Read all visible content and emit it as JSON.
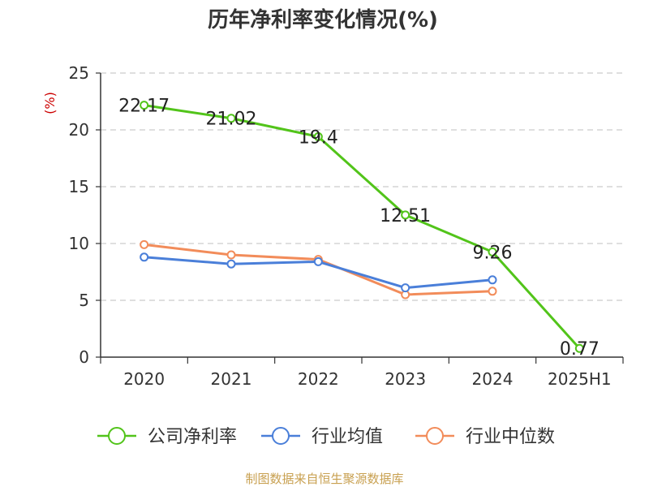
{
  "chart_data": {
    "type": "line",
    "title": "历年净利率变化情况(%)",
    "ylabel": "(%)",
    "categories": [
      "2020",
      "2021",
      "2022",
      "2023",
      "2024",
      "2025H1"
    ],
    "ylim": [
      0,
      25
    ],
    "yticks": [
      0,
      5,
      10,
      15,
      20,
      25
    ],
    "grid": true,
    "legend_position": "bottom",
    "series": [
      {
        "name": "公司净利率",
        "color": "#52c41a",
        "labeled": true,
        "values": [
          22.17,
          21.02,
          19.4,
          12.51,
          9.26,
          0.77
        ],
        "labels": [
          "22.17",
          "21.02",
          "19.4",
          "12.51",
          "9.26",
          "0.77"
        ]
      },
      {
        "name": "行业均值",
        "color": "#4a7fd9",
        "labeled": false,
        "values": [
          8.8,
          8.2,
          8.4,
          6.1,
          6.8,
          null
        ]
      },
      {
        "name": "行业中位数",
        "color": "#f28c5a",
        "labeled": false,
        "values": [
          9.9,
          9.0,
          8.6,
          5.5,
          5.8,
          null
        ]
      }
    ]
  },
  "source_text": "制图数据来自恒生聚源数据库",
  "colors": {
    "ylabel": "#cc0000",
    "source": "#c8a050",
    "grid": "#cccccc",
    "axis": "#333333"
  }
}
